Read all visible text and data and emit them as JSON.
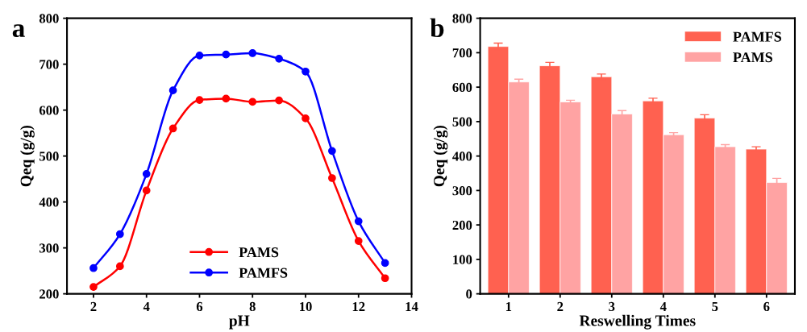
{
  "chart_data": [
    {
      "type": "line",
      "title": "a",
      "xlabel": "pH",
      "ylabel": "Qeq (g/g)",
      "x": [
        2,
        3,
        4,
        5,
        6,
        7,
        8,
        9,
        10,
        11,
        12,
        13
      ],
      "series": [
        {
          "name": "PAMS",
          "color": "#ff0000",
          "values": [
            215,
            260,
            425,
            560,
            622,
            625,
            618,
            621,
            582,
            452,
            315,
            234
          ]
        },
        {
          "name": "PAMFS",
          "color": "#0000ff",
          "values": [
            256,
            330,
            461,
            643,
            719,
            721,
            724,
            712,
            684,
            511,
            358,
            267
          ]
        }
      ],
      "xlim": [
        1,
        14
      ],
      "xticks": [
        2,
        4,
        6,
        8,
        10,
        12,
        14
      ],
      "ylim": [
        200,
        800
      ],
      "yticks": [
        200,
        300,
        400,
        500,
        600,
        700,
        800
      ],
      "marker": "circle",
      "line_style": "solid",
      "grid": false,
      "legend": "bottom"
    },
    {
      "type": "bar",
      "title": "b",
      "xlabel": "Reswelling Times",
      "ylabel": "Qeq (g/g)",
      "categories": [
        "1",
        "2",
        "3",
        "4",
        "5",
        "6"
      ],
      "series": [
        {
          "name": "PAMFS",
          "color": "#ff6150",
          "values": [
            718,
            662,
            630,
            560,
            510,
            420
          ],
          "errors": [
            10,
            10,
            8,
            8,
            10,
            7
          ]
        },
        {
          "name": "PAMS",
          "color": "#ffa3a3",
          "values": [
            615,
            557,
            522,
            462,
            427,
            323
          ],
          "errors": [
            8,
            5,
            10,
            6,
            6,
            12
          ]
        }
      ],
      "ylim": [
        0,
        800
      ],
      "yticks": [
        0,
        100,
        200,
        300,
        400,
        500,
        600,
        700,
        800
      ],
      "grid": false,
      "legend": "top right"
    }
  ]
}
